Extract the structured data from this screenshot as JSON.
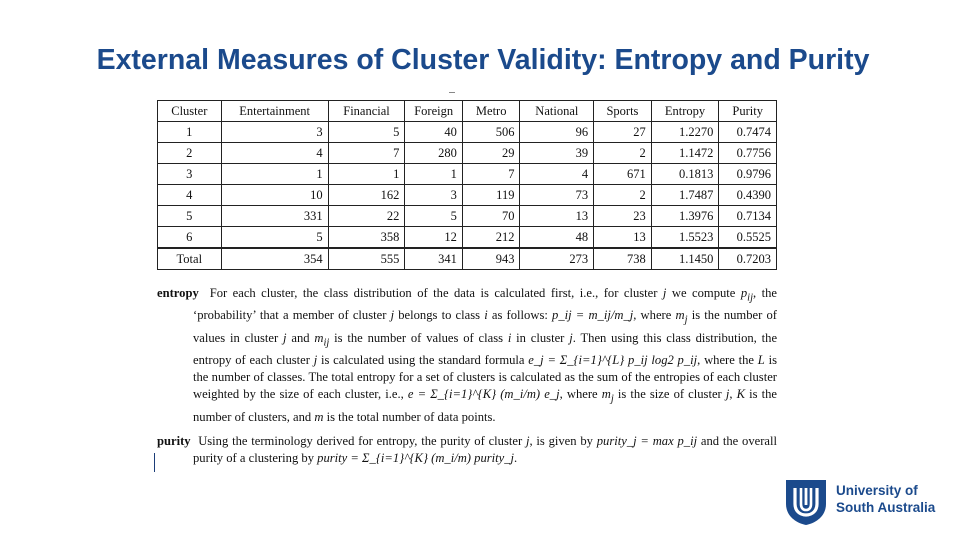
{
  "title": "External Measures of Cluster Validity: Entropy and Purity",
  "table": {
    "headers": [
      "Cluster",
      "Entertainment",
      "Financial",
      "Foreign",
      "Metro",
      "National",
      "Sports",
      "Entropy",
      "Purity"
    ],
    "rows": [
      [
        "1",
        "3",
        "5",
        "40",
        "506",
        "96",
        "27",
        "1.2270",
        "0.7474"
      ],
      [
        "2",
        "4",
        "7",
        "280",
        "29",
        "39",
        "2",
        "1.1472",
        "0.7756"
      ],
      [
        "3",
        "1",
        "1",
        "1",
        "7",
        "4",
        "671",
        "0.1813",
        "0.9796"
      ],
      [
        "4",
        "10",
        "162",
        "3",
        "119",
        "73",
        "2",
        "1.7487",
        "0.4390"
      ],
      [
        "5",
        "331",
        "22",
        "5",
        "70",
        "13",
        "23",
        "1.3976",
        "0.7134"
      ],
      [
        "6",
        "5",
        "358",
        "12",
        "212",
        "48",
        "13",
        "1.5523",
        "0.5525"
      ]
    ],
    "total": [
      "Total",
      "354",
      "555",
      "341",
      "943",
      "273",
      "738",
      "1.1450",
      "0.7203"
    ]
  },
  "entropy": {
    "term": "entropy",
    "t1": "For each cluster, the class distribution of the data is calculated first, i.e., for cluster ",
    "t2": " we compute ",
    "t3": ", the ‘probability’ that a member of cluster ",
    "t4": " belongs to class ",
    "t5": " as follows: ",
    "t6": ", where ",
    "t7": " is the number of values in cluster ",
    "t8": " and ",
    "t9": " is the number of values of class ",
    "t10": " in cluster ",
    "t11": ". Then using this class distribution, the entropy of each cluster ",
    "t12": " is calculated using the standard formula ",
    "t13": ", where the ",
    "t14": " is the number of classes. The total entropy for a set of clusters is calculated as the sum of the entropies of each cluster weighted by the size of each cluster, i.e., ",
    "t15": ", where ",
    "t16": " is the size of cluster ",
    "t17": ", ",
    "t18": " is the number of clusters, and ",
    "t19": " is the total number of data points.",
    "var_j": "j",
    "var_i": "i",
    "var_L": "L",
    "var_K": "K",
    "var_m": "m",
    "pij": "p",
    "sub_ij": "ij",
    "sub_j": "j",
    "m_letter": "m",
    "eq_pij": "p_ij = m_ij/m_j",
    "eq_ej": "e_j = Σ_{i=1}^{L} p_ij log2 p_ij",
    "eq_e": "e = Σ_{i=1}^{K} (m_i/m) e_j"
  },
  "purity": {
    "term": "purity",
    "t1": "Using the terminology derived for entropy, the purity of cluster ",
    "t2": ", is given by ",
    "t3": " and the overall purity of a clustering by ",
    "t4": ".",
    "var_j": "j",
    "eq_purity_j": "purity_j = max p_ij",
    "eq_purity": "purity = Σ_{i=1}^{K} (m_i/m) purity_j"
  },
  "logo": {
    "line1": "University of",
    "line2": "South Australia"
  },
  "colors": {
    "title": "#1b4a8c",
    "logo": "#1b4a8c"
  }
}
